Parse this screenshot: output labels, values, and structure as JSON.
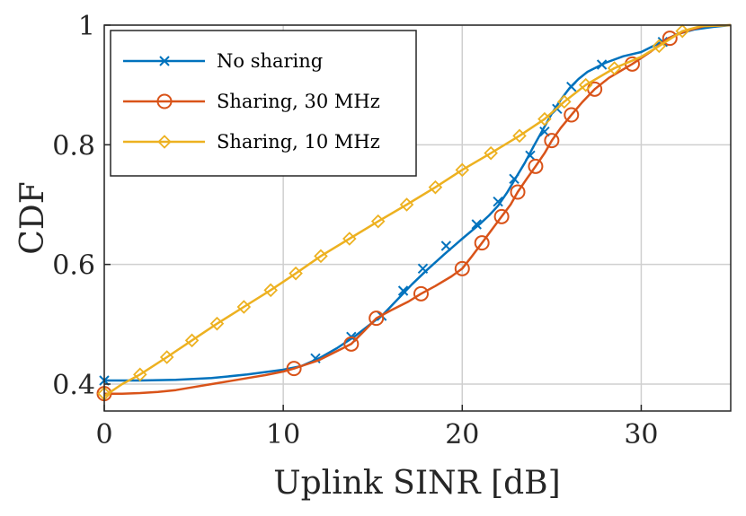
{
  "chart_data": {
    "type": "line",
    "xlabel": "Uplink SINR [dB]",
    "ylabel": "CDF",
    "xlim": [
      0,
      35
    ],
    "ylim": [
      0.355,
      1.0
    ],
    "xticks": [
      0,
      10,
      20,
      30
    ],
    "yticks": [
      0.4,
      0.6,
      0.8,
      1.0
    ],
    "xtick_labels": [
      "0",
      "10",
      "20",
      "30"
    ],
    "ytick_labels": [
      "0.4",
      "0.6",
      "0.8",
      "1"
    ],
    "grid": true,
    "legend_position": "top-left",
    "series": [
      {
        "name": "No sharing",
        "color": "#0072BD",
        "marker": "x",
        "x": [
          0,
          2,
          4,
          6,
          8,
          10,
          11,
          12,
          13,
          14,
          15,
          15.6,
          16.5,
          17.2,
          18,
          19,
          20,
          21,
          21.5,
          22,
          22.5,
          23,
          23.5,
          24,
          24.5,
          25,
          25.5,
          26,
          26.5,
          27,
          28,
          29,
          30,
          31,
          32,
          33,
          34,
          35
        ],
        "y": [
          0.406,
          0.406,
          0.407,
          0.41,
          0.416,
          0.424,
          0.43,
          0.443,
          0.46,
          0.48,
          0.503,
          0.517,
          0.545,
          0.567,
          0.59,
          0.617,
          0.643,
          0.668,
          0.682,
          0.698,
          0.72,
          0.745,
          0.77,
          0.798,
          0.825,
          0.852,
          0.875,
          0.895,
          0.91,
          0.922,
          0.937,
          0.948,
          0.955,
          0.97,
          0.985,
          0.993,
          0.997,
          1.0
        ],
        "markers_x": [
          0,
          11.8,
          13.8,
          15.5,
          16.7,
          17.8,
          19.1,
          20.8,
          22.0,
          22.9,
          23.8,
          24.6,
          25.3,
          26.1,
          27.8,
          31.2
        ],
        "markers_y": [
          0.406,
          0.443,
          0.479,
          0.514,
          0.556,
          0.593,
          0.631,
          0.667,
          0.705,
          0.743,
          0.782,
          0.822,
          0.86,
          0.897,
          0.934,
          0.972
        ]
      },
      {
        "name": "Sharing, 30 MHz",
        "color": "#D95319",
        "marker": "o",
        "x": [
          0,
          1,
          2,
          3,
          4,
          5,
          6,
          7,
          8,
          9,
          10,
          10.6,
          11,
          12,
          13,
          13.8,
          14.5,
          15.2,
          16,
          17,
          17.7,
          18.5,
          19.4,
          20,
          20.5,
          21.1,
          21.7,
          22.2,
          22.7,
          23.1,
          23.6,
          24.1,
          24.6,
          25,
          25.5,
          26.1,
          26.7,
          27.4,
          28.2,
          29.5,
          30.5,
          31.5,
          32.5,
          33.5,
          35
        ],
        "y": [
          0.384,
          0.384,
          0.385,
          0.387,
          0.39,
          0.395,
          0.4,
          0.405,
          0.41,
          0.415,
          0.421,
          0.426,
          0.43,
          0.44,
          0.455,
          0.467,
          0.488,
          0.51,
          0.523,
          0.538,
          0.551,
          0.564,
          0.58,
          0.593,
          0.612,
          0.636,
          0.66,
          0.68,
          0.7,
          0.721,
          0.743,
          0.764,
          0.786,
          0.807,
          0.828,
          0.85,
          0.871,
          0.893,
          0.912,
          0.935,
          0.955,
          0.978,
          0.99,
          0.998,
          1.0
        ],
        "markers_x": [
          0,
          10.6,
          13.8,
          15.2,
          17.7,
          20.0,
          21.1,
          22.2,
          23.1,
          24.1,
          25.0,
          26.1,
          27.4,
          29.5,
          31.6
        ],
        "markers_y": [
          0.384,
          0.426,
          0.467,
          0.51,
          0.551,
          0.593,
          0.636,
          0.68,
          0.721,
          0.764,
          0.807,
          0.85,
          0.893,
          0.935,
          0.978
        ]
      },
      {
        "name": "Sharing, 10 MHz",
        "color": "#EDB120",
        "marker": "diamond",
        "x": [
          0,
          0.5,
          1.0,
          1.5,
          2,
          3.5,
          4.9,
          6.3,
          7.8,
          9.3,
          10.7,
          12.1,
          13.7,
          15.3,
          16.9,
          18.5,
          20.0,
          21.6,
          23.2,
          24.6,
          25.7,
          26.9,
          28.5,
          30.0,
          31.0,
          32.3,
          33.3,
          35
        ],
        "y": [
          0.38,
          0.39,
          0.4,
          0.408,
          0.416,
          0.445,
          0.473,
          0.501,
          0.529,
          0.557,
          0.585,
          0.614,
          0.643,
          0.672,
          0.7,
          0.729,
          0.758,
          0.786,
          0.815,
          0.843,
          0.872,
          0.9,
          0.928,
          0.947,
          0.965,
          0.99,
          0.998,
          1.0
        ],
        "markers_x": [
          0,
          2.0,
          3.5,
          4.9,
          6.3,
          7.8,
          9.3,
          10.7,
          12.1,
          13.7,
          15.3,
          16.9,
          18.5,
          20.0,
          21.6,
          23.2,
          24.6,
          25.7,
          26.9,
          28.5,
          31.0,
          32.3
        ],
        "markers_y": [
          0.384,
          0.416,
          0.445,
          0.473,
          0.501,
          0.529,
          0.557,
          0.585,
          0.614,
          0.643,
          0.672,
          0.7,
          0.729,
          0.758,
          0.786,
          0.815,
          0.843,
          0.872,
          0.9,
          0.928,
          0.965,
          0.99
        ]
      }
    ]
  }
}
